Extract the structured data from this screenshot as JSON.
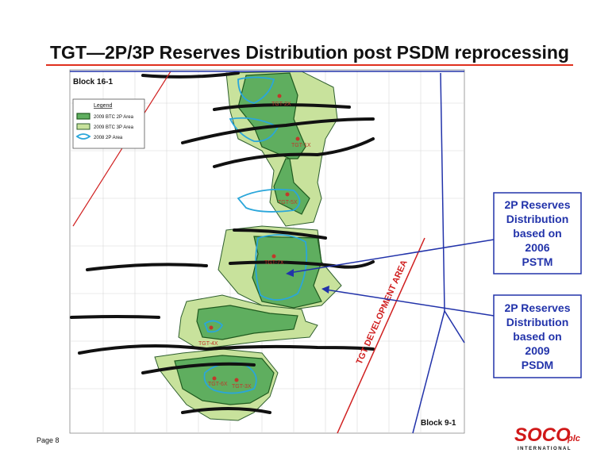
{
  "title": "TGT—2P/3P Reserves Distribution post PSDM reprocessing",
  "map": {
    "blocks": [
      "Block 16-1",
      "Block 9-1"
    ],
    "legend": {
      "title": "Legend",
      "items": [
        "2009 BTC 2P Area",
        "2009 BTC 3P Area",
        "2008 2P Area"
      ]
    },
    "wells": [
      "TGT-2X",
      "TGT-1X",
      "TGT-5X",
      "TGT-7X",
      "TGT-4X",
      "TGT-6X",
      "TGT-3X"
    ],
    "area_label": "TGT DEVELOPMENT AREA"
  },
  "callouts": [
    {
      "lines": [
        "2P Reserves",
        "Distribution",
        "based on",
        "2006",
        "PSTM"
      ]
    },
    {
      "lines": [
        "2P Reserves",
        "Distribution",
        "based on",
        "2009",
        "PSDM"
      ]
    }
  ],
  "footer": {
    "page": "Page 8",
    "logo": "SOCO",
    "logo_suffix": "plc",
    "logo_tagline": "INTERNATIONAL"
  }
}
